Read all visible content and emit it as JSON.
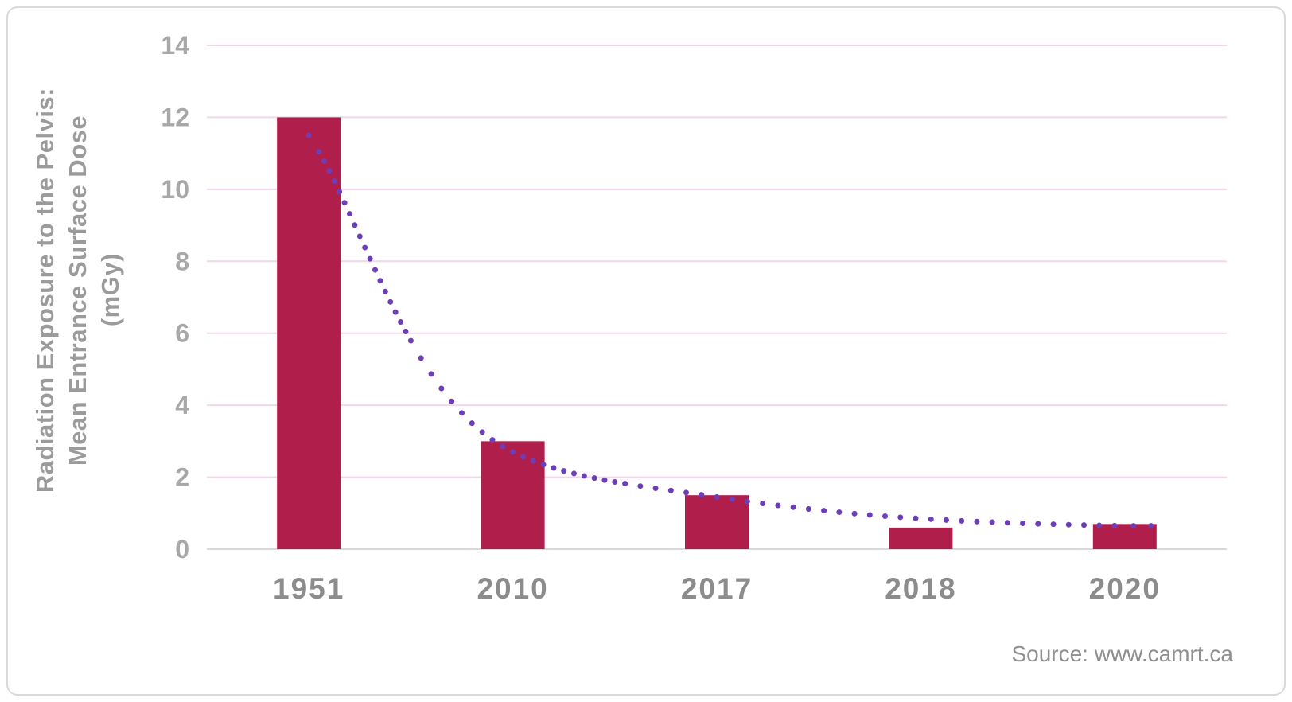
{
  "source": {
    "label": "Source: www.camrt.ca"
  },
  "chart_data": {
    "type": "bar",
    "title": "",
    "xlabel": "",
    "ylabel": "Radiation Exposure to the Pelvis: Mean Entrance Surface Dose (mGy)",
    "ylabel_lines": [
      "Radiation Exposure to the Pelvis:",
      "Mean Entrance Surface Dose",
      "(mGy)"
    ],
    "categories": [
      "1951",
      "2010",
      "2017",
      "2018",
      "2020"
    ],
    "values": [
      12,
      3,
      1.5,
      0.6,
      0.7
    ],
    "ylim": [
      0,
      14
    ],
    "yticks": [
      0,
      2,
      4,
      6,
      8,
      10,
      12,
      14
    ],
    "grid": "horizontal",
    "legend_position": "none",
    "trendline": {
      "style": "dotted",
      "points": [
        11.5,
        2.7,
        1.45,
        0.85,
        0.65
      ],
      "color": "#6c3fb8"
    },
    "colors": {
      "bar": "#b01e4b",
      "grid": "#f2d7e9",
      "axis_line": "#d9d9d9",
      "tick_label": "#a8a8a8",
      "category_label": "#8c8c8c",
      "ylabel": "#9b9b9b",
      "source": "#8f8f8f",
      "border": "#dadada",
      "background": "#ffffff"
    }
  }
}
